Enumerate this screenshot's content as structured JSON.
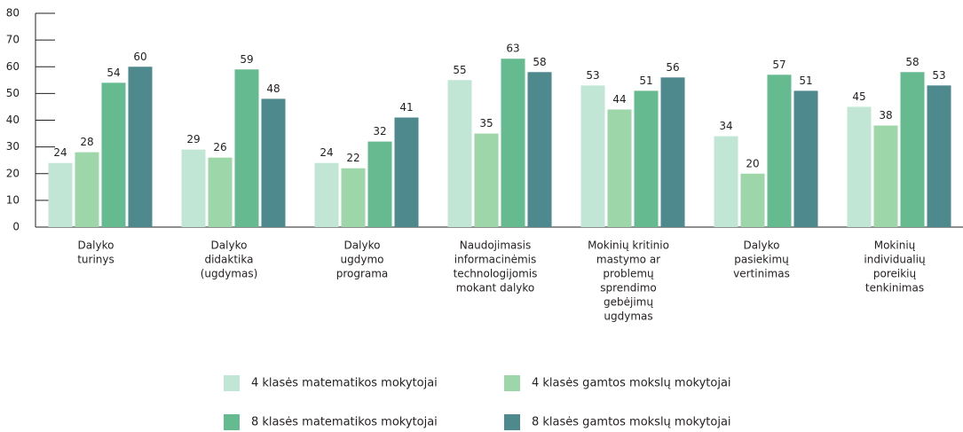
{
  "chart_data": {
    "type": "bar",
    "categories": [
      [
        "Dalyko",
        "turinys"
      ],
      [
        "Dalyko",
        "didaktika",
        "(ugdymas)"
      ],
      [
        "Dalyko",
        "ugdymo",
        "programa"
      ],
      [
        "Naudojimasis",
        "informacinėmis",
        "technologijomis",
        "mokant dalyko"
      ],
      [
        "Mokinių kritinio",
        "mastymo ar",
        "problemų",
        "sprendimo",
        "gebėjimų",
        "ugdymas"
      ],
      [
        "Dalyko",
        "pasiekimų",
        "vertinimas"
      ],
      [
        "Mokinių",
        "individualių",
        "poreikių",
        "tenkinimas"
      ]
    ],
    "series": [
      {
        "name": "4 klasės matematikos mokytojai",
        "color": "#c1e6d6",
        "values": [
          24,
          29,
          24,
          55,
          53,
          34,
          45
        ]
      },
      {
        "name": "4 klasės gamtos mokslų mokytojai",
        "color": "#9dd6a8",
        "values": [
          28,
          26,
          22,
          35,
          44,
          20,
          38
        ]
      },
      {
        "name": "8 klasės matematikos mokytojai",
        "color": "#66ba8f",
        "values": [
          54,
          59,
          32,
          63,
          51,
          57,
          58
        ]
      },
      {
        "name": "8 klasės gamtos mokslų mokytojai",
        "color": "#4e898e",
        "values": [
          60,
          48,
          41,
          58,
          56,
          51,
          53
        ]
      }
    ],
    "ylim": [
      0,
      80
    ],
    "yticks": [
      0,
      10,
      20,
      30,
      40,
      50,
      60,
      70,
      80
    ]
  }
}
